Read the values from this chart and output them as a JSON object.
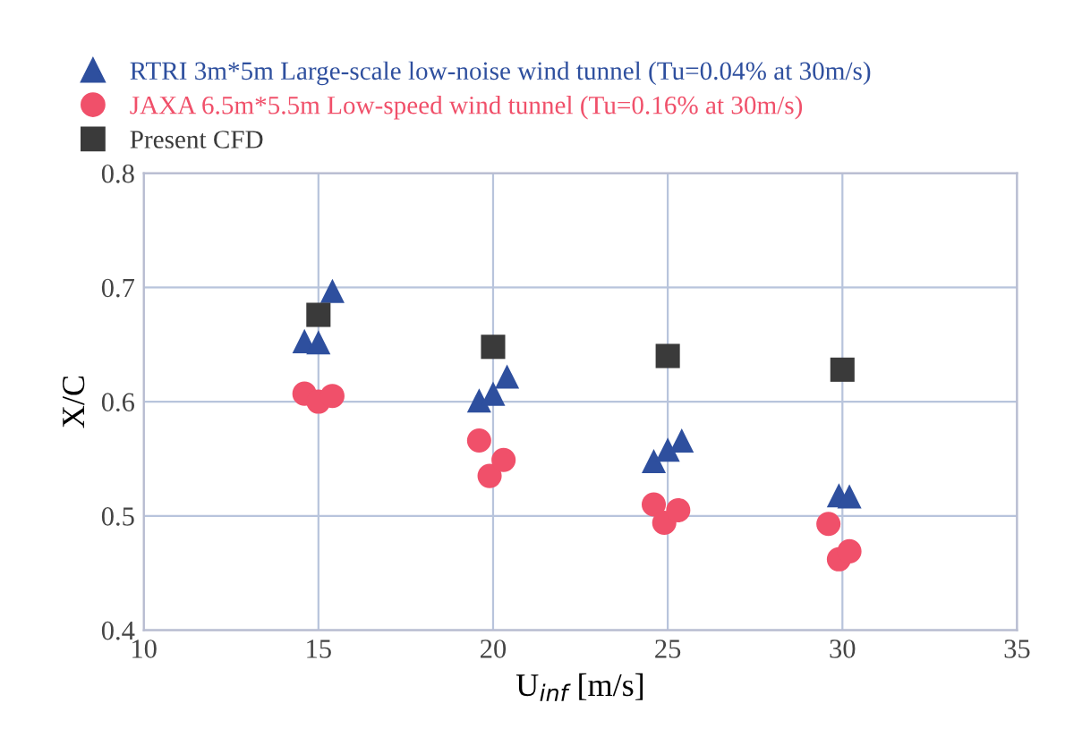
{
  "chart_data": {
    "type": "scatter",
    "xlabel": "U$_{inf}$ [m/s]",
    "ylabel": "X/C",
    "xlim": [
      10,
      35
    ],
    "xticks": [
      10,
      15,
      20,
      25,
      30,
      35
    ],
    "ylim": [
      0.4,
      0.8
    ],
    "yticks": [
      0.4,
      0.5,
      0.6,
      0.7,
      0.8
    ],
    "grid": true,
    "legend": "top left",
    "series": [
      {
        "name": "RTRI 3m*5m Large-scale low-noise wind tunnel (Tu=0.04% at 30m/s)",
        "color": "#2e4f9e",
        "marker": "triangle",
        "x": [
          14.6,
          15.0,
          15.4,
          19.6,
          20.0,
          20.4,
          24.6,
          25.0,
          25.4,
          29.9,
          30.2
        ],
        "values": [
          0.653,
          0.652,
          0.697,
          0.601,
          0.607,
          0.622,
          0.548,
          0.558,
          0.566,
          0.518,
          0.517
        ]
      },
      {
        "name": "JAXA 6.5m*5.5m Low-speed wind tunnel (Tu=0.16% at 30m/s)",
        "color": "#f0506a",
        "marker": "circle",
        "x": [
          14.6,
          15.0,
          15.4,
          19.6,
          19.9,
          20.3,
          24.6,
          24.9,
          25.3,
          29.6,
          29.9,
          30.2
        ],
        "values": [
          0.607,
          0.6,
          0.605,
          0.566,
          0.535,
          0.549,
          0.51,
          0.494,
          0.505,
          0.493,
          0.462,
          0.469
        ]
      },
      {
        "name": "Present CFD",
        "color": "#3a3a3a",
        "marker": "square",
        "x": [
          15,
          20,
          25,
          30
        ],
        "values": [
          0.676,
          0.648,
          0.64,
          0.628
        ]
      }
    ]
  }
}
